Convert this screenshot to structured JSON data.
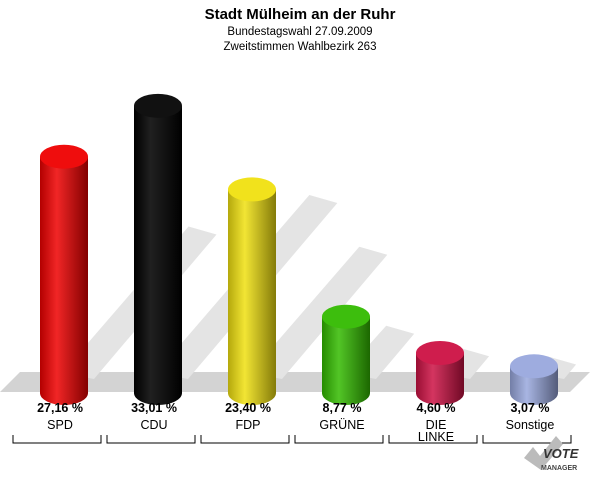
{
  "header": {
    "title": "Stadt Mülheim an der Ruhr",
    "subtitle1": "Bundestagswahl 27.09.2009",
    "subtitle2": "Zweitstimmen Wahlbezirk 263"
  },
  "logo": {
    "line1": "VOTE",
    "line2": "MANAGER"
  },
  "chart_data": {
    "type": "bar",
    "title": "Stadt Mülheim an der Ruhr",
    "subtitle": "Bundestagswahl 27.09.2009 · Zweitstimmen Wahlbezirk 263",
    "xlabel": "",
    "ylabel": "",
    "ylim": [
      0,
      35
    ],
    "grid": false,
    "categories": [
      "SPD",
      "CDU",
      "FDP",
      "GRÜNE",
      "DIE LINKE",
      "Sonstige"
    ],
    "category_lines": [
      [
        "SPD"
      ],
      [
        "CDU"
      ],
      [
        "FDP"
      ],
      [
        "GRÜNE"
      ],
      [
        "DIE",
        "LINKE"
      ],
      [
        "Sonstige"
      ]
    ],
    "values": [
      27.16,
      33.01,
      23.4,
      8.77,
      4.6,
      3.07
    ],
    "value_labels": [
      "27,16 %",
      "33,01 %",
      "23,40 %",
      "8,77 %",
      "4,60 %",
      "3,07 %"
    ],
    "colors": [
      "#ee0000",
      "#000000",
      "#f0e010",
      "#33bb00",
      "#cc1144",
      "#99a8dd"
    ]
  }
}
